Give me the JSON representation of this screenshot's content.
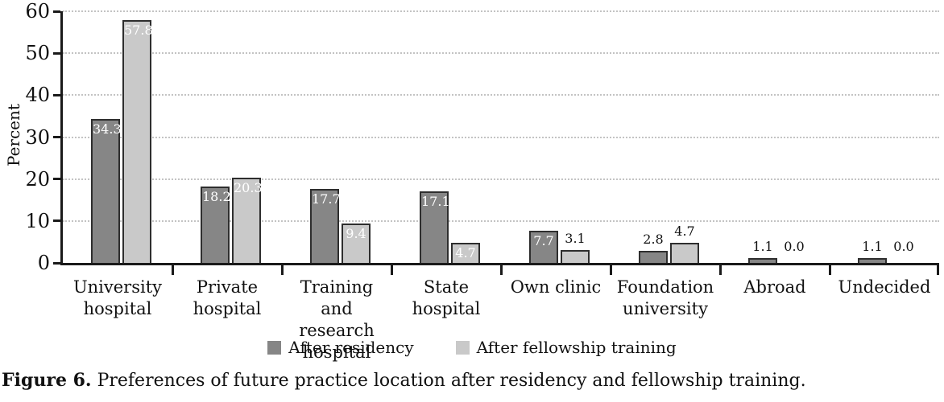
{
  "figure": {
    "caption_label": "Figure 6.",
    "caption_text": " Preferences of future practice location after residency and fellowship training."
  },
  "chart_data": {
    "type": "bar",
    "title": "",
    "xlabel": "",
    "ylabel": "Percent",
    "ylim": [
      0,
      60
    ],
    "yticks": [
      0,
      10,
      20,
      30,
      40,
      50,
      60
    ],
    "grid": "horizontal-dotted",
    "legend_position": "bottom-center",
    "categories": [
      "University hospital",
      "Private hospital",
      "Training and research hospital",
      "State hospital",
      "Own clinic",
      "Foundation university",
      "Abroad",
      "Undecided"
    ],
    "category_label_lines": [
      [
        "University",
        "hospital"
      ],
      [
        "Private",
        "hospital"
      ],
      [
        "Training and",
        "research",
        "hospital"
      ],
      [
        "State",
        "hospital"
      ],
      [
        "Own clinic"
      ],
      [
        "Foundation",
        "university"
      ],
      [
        "Abroad"
      ],
      [
        "Undecided"
      ]
    ],
    "series": [
      {
        "name": "After residency",
        "color": "#868686",
        "values": [
          34.3,
          18.2,
          17.7,
          17.1,
          7.7,
          2.8,
          1.1,
          1.1
        ],
        "labels": [
          "34.3",
          "18.2",
          "17.7",
          "17.1",
          "7.7",
          "2.8",
          "1.1",
          "1.1"
        ],
        "label_inside": [
          true,
          true,
          true,
          true,
          true,
          false,
          false,
          false
        ]
      },
      {
        "name": "After fellowship training",
        "color": "#c9c9c9",
        "values": [
          57.8,
          20.3,
          9.4,
          4.7,
          3.1,
          4.7,
          0.0,
          0.0
        ],
        "labels": [
          "57.8",
          "20.3",
          "9.4",
          "4.7",
          "3.1",
          "4.7",
          "0.0",
          "0.0"
        ],
        "label_inside": [
          true,
          true,
          true,
          true,
          false,
          false,
          false,
          false
        ]
      }
    ],
    "colors": {
      "axis": "#1a1a1a",
      "grid": "#c3c3c3",
      "bar_border": "#2e2e2e",
      "label_inside": "#ffffff",
      "label_outside": "#111111"
    }
  }
}
